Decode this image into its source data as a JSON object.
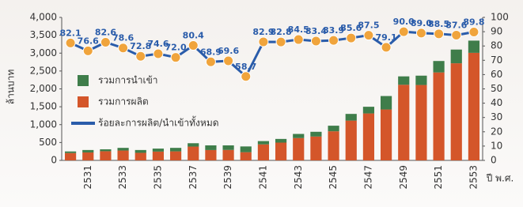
{
  "chart_data": {
    "type": "bar-line",
    "y_label": "ล้านบาท",
    "x_label": "ปี พ.ศ.",
    "categories": [
      null,
      "2531",
      null,
      "2533",
      null,
      "2535",
      null,
      "2537",
      null,
      "2539",
      null,
      "2541",
      null,
      "2543",
      null,
      "2545",
      null,
      "2547",
      null,
      "2549",
      null,
      "2551",
      null,
      "2553"
    ],
    "series": [
      {
        "name": "รวมการผลิต",
        "color": "#d4562a",
        "kind": "bar",
        "values": [
          205,
          222,
          256,
          275,
          211,
          246,
          252,
          386,
          289,
          292,
          229,
          448,
          497,
          625,
          667,
          814,
          1113,
          1313,
          1424,
          2115,
          2109,
          2460,
          2716,
          3008
        ]
      },
      {
        "name": "รวมการนำเข้า",
        "color": "#3f7d4a",
        "kind": "bar",
        "values": [
          45,
          68,
          54,
          75,
          79,
          84,
          98,
          94,
          131,
          128,
          161,
          92,
          103,
          115,
          133,
          156,
          187,
          187,
          376,
          235,
          261,
          320,
          384,
          342
        ]
      },
      {
        "name": "ร้อยละการผลิต/นำเข้าทั้งหมด",
        "color": "#2a5caa",
        "kind": "line",
        "axis": "y2",
        "values": [
          82.1,
          76.6,
          82.6,
          78.6,
          72.8,
          74.6,
          72.0,
          80.4,
          68.9,
          69.6,
          58.7,
          82.9,
          82.8,
          84.5,
          83.4,
          83.9,
          85.6,
          87.5,
          79.1,
          90.0,
          89.0,
          88.5,
          87.6,
          89.8
        ],
        "value_labels": [
          "82.1",
          "76.6",
          "82.6",
          "78.6",
          "72.8",
          "74.6",
          "72.0",
          "80.4",
          "68.9",
          "69.6",
          "58.7",
          "82.9",
          "82.8",
          "84.5",
          "83.4",
          "83.9",
          "85.6",
          "87.5",
          "79.1",
          "90.0",
          "89.0",
          "88.5",
          "87.6",
          "89.8"
        ]
      }
    ],
    "ylim": [
      0,
      4000
    ],
    "yticks": [
      0,
      500,
      {
        "value": 1000,
        "label": "1,000"
      },
      {
        "value": 1500,
        "label": "1,500"
      },
      {
        "value": 2000,
        "label": "2,000"
      },
      {
        "value": 2500,
        "label": "2,500"
      },
      {
        "value": 3000,
        "label": "3,000"
      },
      {
        "value": 3500,
        "label": "3,500"
      },
      {
        "value": 4000,
        "label": "4,000"
      }
    ],
    "y2lim": [
      0,
      100
    ],
    "y2ticks": [
      0,
      10,
      20,
      30,
      40,
      50,
      60,
      70,
      80,
      90,
      100
    ],
    "marker_color": "#f0a43c"
  }
}
